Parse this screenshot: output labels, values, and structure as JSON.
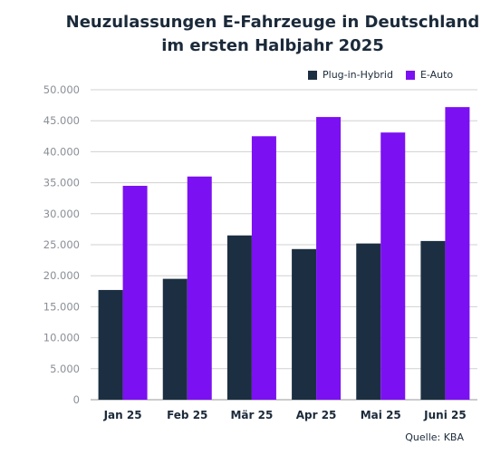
{
  "chart_data": {
    "type": "bar",
    "title_line1": "Neuzulassungen E-Fahrzeuge in Deutschland",
    "title_line2": "im ersten Halbjahr 2025",
    "categories": [
      "Jan 25",
      "Feb 25",
      "Mär 25",
      "Apr 25",
      "Mai 25",
      "Juni 25"
    ],
    "series": [
      {
        "name": "Plug-in-Hybrid",
        "values": [
          17700,
          19500,
          26500,
          24300,
          25200,
          25600
        ]
      },
      {
        "name": "E-Auto",
        "values": [
          34500,
          36000,
          42500,
          45600,
          43100,
          47200
        ]
      }
    ],
    "ylim": [
      0,
      50000
    ],
    "yticks": [
      0,
      5000,
      10000,
      15000,
      20000,
      25000,
      30000,
      35000,
      40000,
      45000,
      50000
    ],
    "ytick_labels": [
      "0",
      "5.000",
      "10.000",
      "15.000",
      "20.000",
      "25.000",
      "30.000",
      "35.000",
      "40.000",
      "45.000",
      "50.000"
    ],
    "grid": true,
    "legend_position": "top-right",
    "colors": {
      "Plug-in-Hybrid": "#1c2f42",
      "E-Auto": "#7b10f2"
    },
    "source": "Quelle: KBA"
  }
}
